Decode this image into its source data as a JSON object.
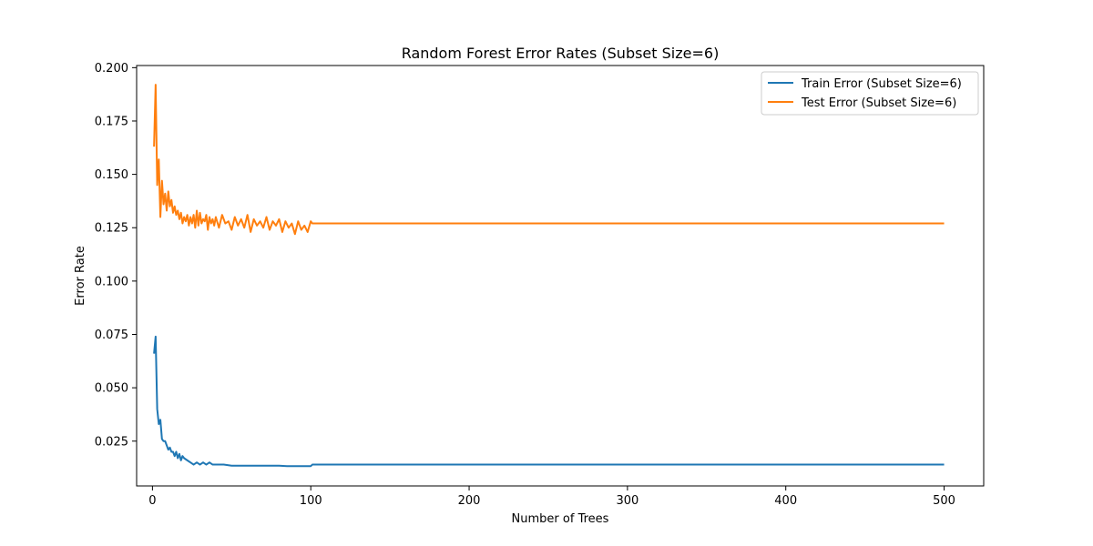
{
  "chart_data": {
    "type": "line",
    "title": "Random Forest Error Rates (Subset Size=6)",
    "xlabel": "Number of Trees",
    "ylabel": "Error Rate",
    "xlim": [
      -10,
      525
    ],
    "ylim": [
      0.004,
      0.201
    ],
    "x_ticks": [
      0,
      100,
      200,
      300,
      400,
      500
    ],
    "y_ticks": [
      0.025,
      0.05,
      0.075,
      0.1,
      0.125,
      0.15,
      0.175,
      0.2
    ],
    "y_tick_labels": [
      "0.025",
      "0.050",
      "0.075",
      "0.100",
      "0.125",
      "0.150",
      "0.175",
      "0.200"
    ],
    "x_tick_labels": [
      "0",
      "100",
      "200",
      "300",
      "400",
      "500"
    ],
    "grid": false,
    "legend_position": "top-right",
    "series": [
      {
        "name": "Train Error (Subset Size=6)",
        "color": "#1f77b4",
        "x": [
          1,
          2,
          3,
          4,
          5,
          6,
          7,
          8,
          9,
          10,
          11,
          12,
          13,
          14,
          15,
          16,
          17,
          18,
          19,
          20,
          22,
          24,
          26,
          28,
          30,
          32,
          34,
          36,
          38,
          40,
          45,
          50,
          55,
          60,
          65,
          70,
          75,
          80,
          85,
          90,
          95,
          100,
          101,
          500
        ],
        "values": [
          0.066,
          0.074,
          0.04,
          0.033,
          0.035,
          0.026,
          0.025,
          0.025,
          0.023,
          0.021,
          0.022,
          0.02,
          0.02,
          0.018,
          0.02,
          0.017,
          0.019,
          0.016,
          0.018,
          0.017,
          0.016,
          0.015,
          0.014,
          0.015,
          0.014,
          0.015,
          0.014,
          0.015,
          0.014,
          0.014,
          0.014,
          0.0135,
          0.0135,
          0.0135,
          0.0135,
          0.0135,
          0.0135,
          0.0135,
          0.0133,
          0.0133,
          0.0133,
          0.0133,
          0.014,
          0.014
        ]
      },
      {
        "name": "Test Error (Subset Size=6)",
        "color": "#ff7f0e",
        "x": [
          1,
          2,
          3,
          4,
          5,
          6,
          7,
          8,
          9,
          10,
          11,
          12,
          13,
          14,
          15,
          16,
          17,
          18,
          19,
          20,
          21,
          22,
          23,
          24,
          25,
          26,
          27,
          28,
          29,
          30,
          31,
          32,
          33,
          34,
          35,
          36,
          37,
          38,
          39,
          40,
          42,
          44,
          46,
          48,
          50,
          52,
          54,
          56,
          58,
          60,
          62,
          64,
          66,
          68,
          70,
          72,
          74,
          76,
          78,
          80,
          82,
          84,
          86,
          88,
          90,
          92,
          94,
          96,
          98,
          100,
          101,
          500
        ],
        "values": [
          0.163,
          0.192,
          0.145,
          0.157,
          0.13,
          0.147,
          0.136,
          0.141,
          0.133,
          0.142,
          0.135,
          0.138,
          0.132,
          0.135,
          0.131,
          0.133,
          0.129,
          0.132,
          0.127,
          0.13,
          0.128,
          0.131,
          0.126,
          0.13,
          0.127,
          0.131,
          0.125,
          0.133,
          0.126,
          0.132,
          0.127,
          0.129,
          0.128,
          0.131,
          0.124,
          0.13,
          0.127,
          0.129,
          0.126,
          0.13,
          0.125,
          0.131,
          0.127,
          0.128,
          0.124,
          0.13,
          0.126,
          0.129,
          0.125,
          0.131,
          0.123,
          0.129,
          0.126,
          0.128,
          0.125,
          0.13,
          0.124,
          0.128,
          0.126,
          0.129,
          0.123,
          0.128,
          0.125,
          0.127,
          0.122,
          0.128,
          0.124,
          0.126,
          0.123,
          0.128,
          0.127,
          0.127
        ]
      }
    ]
  }
}
